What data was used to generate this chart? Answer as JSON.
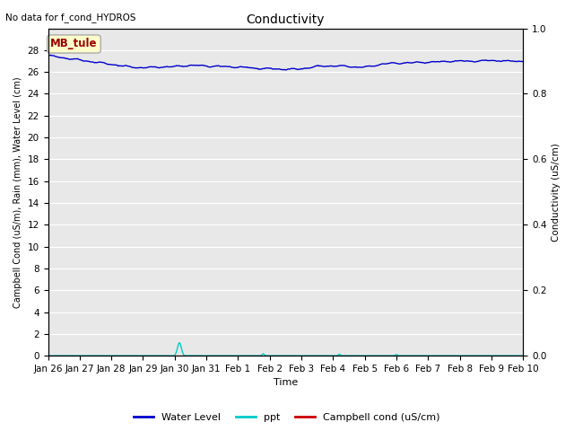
{
  "title": "Conductivity",
  "top_left_text": "No data for f_cond_HYDROS",
  "xlabel": "Time",
  "ylabel_left": "Campbell Cond (uS/m), Rain (mm), Water Level (cm)",
  "ylabel_right": "Conductivity (uS/cm)",
  "ylim_left": [
    0,
    30
  ],
  "ylim_right": [
    0.0,
    1.0
  ],
  "yticks_left": [
    0,
    2,
    4,
    6,
    8,
    10,
    12,
    14,
    16,
    18,
    20,
    22,
    24,
    26,
    28
  ],
  "yticks_right": [
    0.0,
    0.2,
    0.4,
    0.6,
    0.8,
    1.0
  ],
  "background_color": "#e8e8e8",
  "figure_color": "#ffffff",
  "box_label": "MB_tule",
  "box_facecolor": "#ffffcc",
  "box_edgecolor": "#aaaaaa",
  "box_textcolor": "#990000",
  "water_level_color": "#0000cc",
  "ppt_color": "#00cccc",
  "campbell_cond_color": "#cc0000",
  "legend_labels": [
    "Water Level",
    "ppt",
    "Campbell cond (uS/cm)"
  ],
  "num_points": 500,
  "xtick_labels": [
    "Jan 26",
    "Jan 27",
    "Jan 28",
    "Jan 29",
    "Jan 30",
    "Jan 31",
    "Feb 1",
    "Feb 2",
    "Feb 3",
    "Feb 4",
    "Feb 5",
    "Feb 6",
    "Feb 7",
    "Feb 8",
    "Feb 9",
    "Feb 10"
  ],
  "xtick_positions": [
    0,
    1,
    2,
    3,
    4,
    5,
    6,
    7,
    8,
    9,
    10,
    11,
    12,
    13,
    14,
    15
  ],
  "wl_keypoints_x": [
    0,
    0.5,
    1.0,
    1.5,
    2.0,
    2.5,
    3.0,
    3.5,
    4.0,
    4.2,
    4.5,
    5.0,
    5.5,
    6.0,
    6.5,
    7.0,
    7.5,
    8.0,
    8.5,
    9.0,
    9.5,
    10.0,
    10.5,
    11.0,
    11.5,
    12.0,
    12.5,
    13.0,
    13.5,
    14.0,
    14.5,
    15.0
  ],
  "wl_keypoints_y": [
    27.5,
    27.3,
    27.1,
    26.9,
    26.7,
    26.5,
    26.4,
    26.45,
    26.5,
    26.55,
    26.6,
    26.55,
    26.5,
    26.45,
    26.35,
    26.3,
    26.25,
    26.3,
    26.5,
    26.55,
    26.5,
    26.45,
    26.7,
    26.8,
    26.85,
    26.9,
    26.95,
    27.0,
    27.0,
    27.05,
    27.0,
    27.0
  ]
}
